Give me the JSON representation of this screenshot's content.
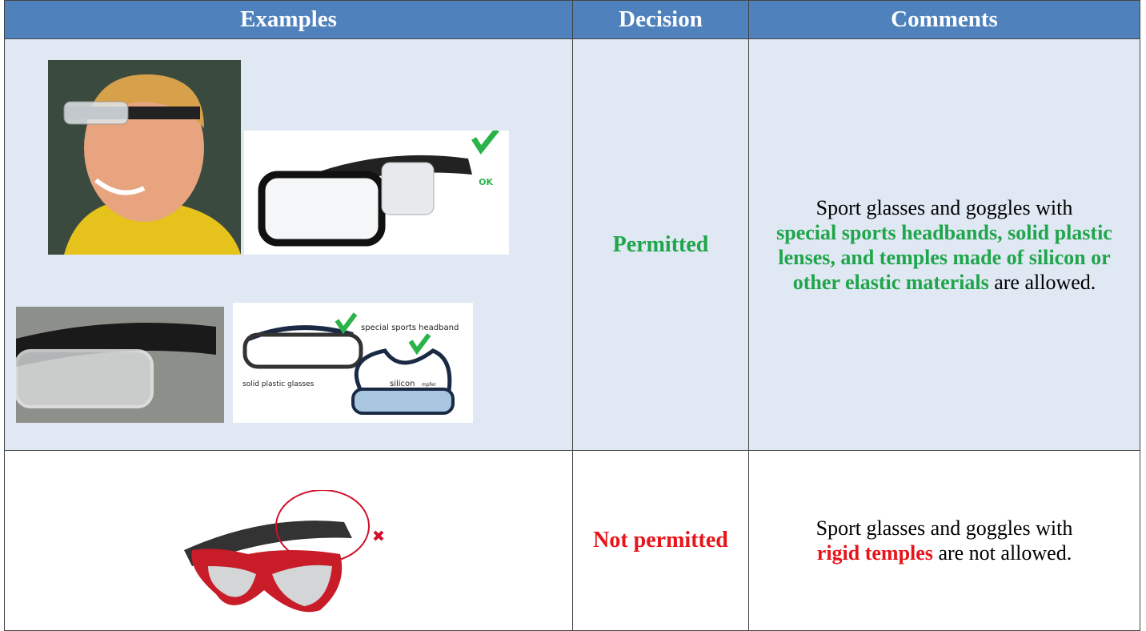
{
  "table": {
    "header": [
      "Examples",
      "Decision",
      "Comments"
    ],
    "rows": [
      {
        "decision": "Permitted",
        "color": "#1fa54a",
        "comment_before": "Sport glasses and goggles with",
        "comment_highlight": "special sports headbands, solid plastic lenses, and temples made of silicon or other elastic materials",
        "comment_after": "are allowed.",
        "image_labels": [
          "OK",
          "special sports headband",
          "solid plastic glasses",
          "silicon",
          "mpfer"
        ]
      },
      {
        "decision": "Not permitted",
        "color": "#e8141c",
        "comment_before": "Sport glasses and goggles with",
        "comment_highlight": "rigid temples",
        "comment_after": "are not allowed."
      }
    ]
  }
}
